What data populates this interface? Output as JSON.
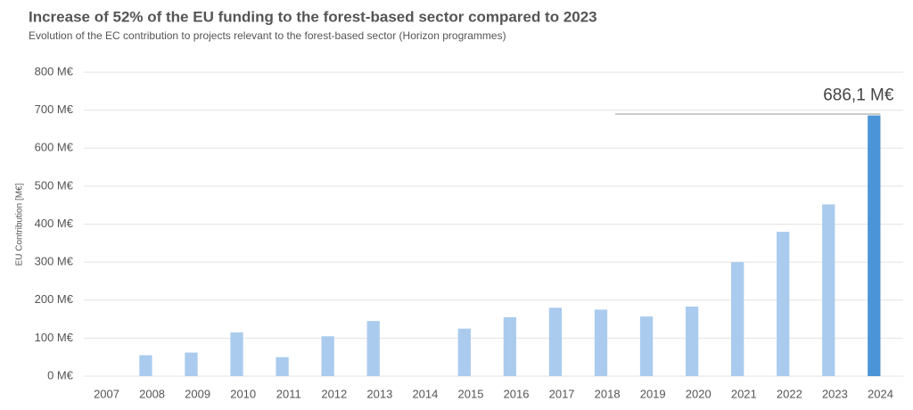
{
  "chart_data": {
    "type": "bar",
    "title": "Increase of 52% of the EU funding to the forest-based sector compared to 2023",
    "subtitle": "Evolution of the EC contribution to projects relevant to the forest-based sector (Horizon programmes)",
    "y_label": "EU Contribution [M€]",
    "categories": [
      "2007",
      "2008",
      "2009",
      "2010",
      "2011",
      "2012",
      "2013",
      "2014",
      "2015",
      "2016",
      "2017",
      "2018",
      "2019",
      "2020",
      "2021",
      "2022",
      "2023",
      "2024"
    ],
    "values": [
      0,
      55,
      62,
      115,
      50,
      105,
      145,
      0,
      125,
      155,
      180,
      175,
      157,
      183,
      300,
      380,
      452,
      686.1
    ],
    "colors": [
      "#aacbee",
      "#aacbee",
      "#aacbee",
      "#aacbee",
      "#aacbee",
      "#aacbee",
      "#aacbee",
      "#aacbee",
      "#aacbee",
      "#aacbee",
      "#aacbee",
      "#aacbee",
      "#aacbee",
      "#aacbee",
      "#aacbee",
      "#aacbee",
      "#aacbee",
      "#4b94d8"
    ],
    "value_labels": [
      null,
      null,
      null,
      null,
      null,
      null,
      null,
      null,
      null,
      null,
      null,
      null,
      null,
      null,
      null,
      null,
      null,
      "686,1 M€"
    ],
    "ylim": [
      0,
      800
    ],
    "yticks": [
      {
        "value": 0,
        "label": "0 M€"
      },
      {
        "value": 100,
        "label": "100 M€"
      },
      {
        "value": 200,
        "label": "200 M€"
      },
      {
        "value": 300,
        "label": "300 M€"
      },
      {
        "value": 400,
        "label": "400 M€"
      },
      {
        "value": 500,
        "label": "500 M€"
      },
      {
        "value": 600,
        "label": "600 M€"
      },
      {
        "value": 700,
        "label": "700 M€"
      },
      {
        "value": 800,
        "label": "800 M€"
      }
    ],
    "grid": true
  }
}
